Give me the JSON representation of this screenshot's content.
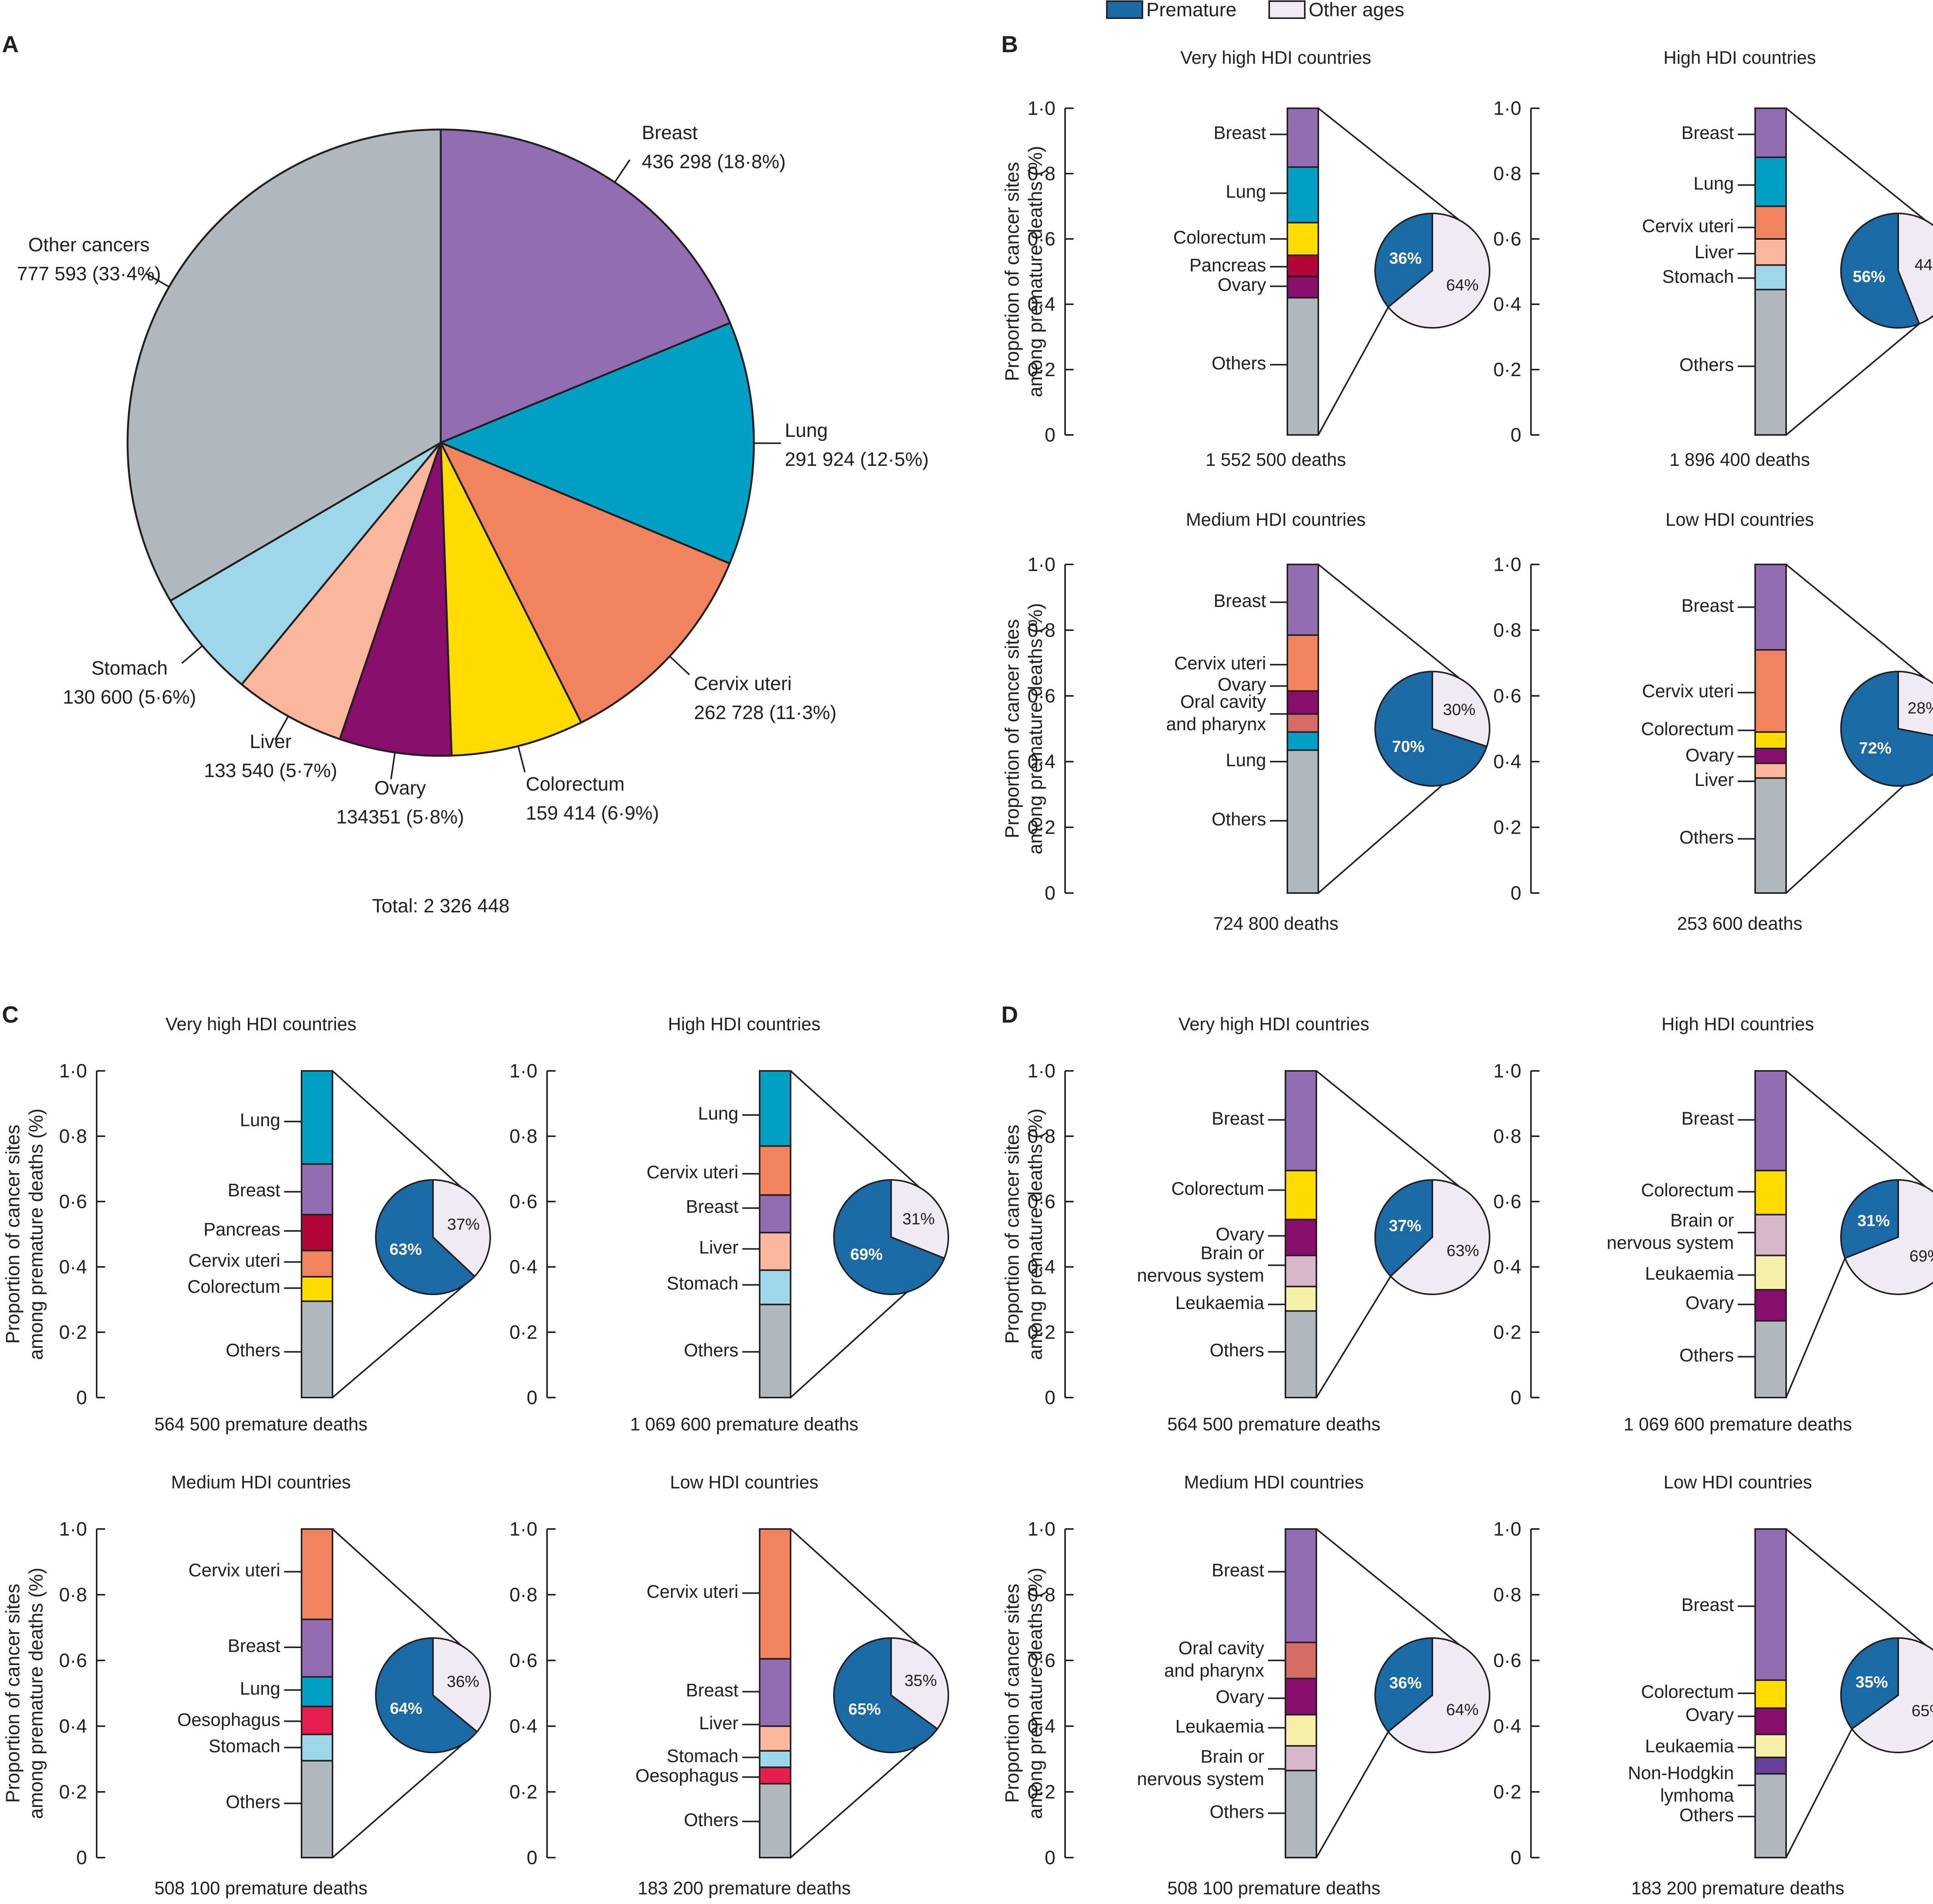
{
  "colors": {
    "Breast": "#936db1",
    "Lung": "#009fc4",
    "Cervix uteri": "#f1845e",
    "Colorectum": "#ffdc00",
    "Ovary": "#870e6d",
    "Liver": "#f9b69c",
    "Stomach": "#9fd7ea",
    "Pancreas": "#b3063b",
    "Oral cavity and pharynx": "#d86a66",
    "Oesophagus": "#e51f4d",
    "Brain or nervous system": "#d8b8c8",
    "Leukaemia": "#f5f0a6",
    "Non-Hodgkin lymhoma": "#6a3f98",
    "Others": "#b1b8be",
    "Other cancers": "#b1b8be",
    "premature": "#1a6aa6",
    "other_ages": "#eeebf3"
  },
  "legend": {
    "premature": "Premature",
    "other_ages": "Other ages"
  },
  "axis": {
    "ylabel_line1": "Proportion of cancer sites",
    "ylabel_line2": "among premature deaths (%)",
    "ticks": [
      "0",
      "0·2",
      "0·4",
      "0·6",
      "0·8",
      "1·0"
    ]
  },
  "chart_data": [
    {
      "panel": "A",
      "type": "pie",
      "total_label": "Total: 2 326 448",
      "slices": [
        {
          "name": "Breast",
          "value": 436298,
          "label": "Breast",
          "sublabel": "436 298 (18·8%)"
        },
        {
          "name": "Lung",
          "value": 291924,
          "label": "Lung",
          "sublabel": "291 924 (12·5%)"
        },
        {
          "name": "Cervix uteri",
          "value": 262728,
          "label": "Cervix uteri",
          "sublabel": "262 728 (11·3%)"
        },
        {
          "name": "Colorectum",
          "value": 159414,
          "label": "Colorectum",
          "sublabel": "159 414 (6·9%)"
        },
        {
          "name": "Ovary",
          "value": 134351,
          "label": "Ovary",
          "sublabel": "134351 (5·8%)"
        },
        {
          "name": "Liver",
          "value": 133540,
          "label": "Liver",
          "sublabel": "133 540 (5·7%)"
        },
        {
          "name": "Stomach",
          "value": 130600,
          "label": "Stomach",
          "sublabel": "130 600 (5·6%)"
        },
        {
          "name": "Other cancers",
          "value": 777593,
          "label": "Other cancers",
          "sublabel": "777 593 (33·4%)"
        }
      ]
    },
    {
      "panel": "B",
      "type": "stacked_bar_with_pie",
      "subplots": [
        {
          "title": "Very high HDI countries",
          "footer": "1 552 500 deaths",
          "premature_pct": 36,
          "other_pct": 64,
          "segments": [
            [
              "Others",
              0.42
            ],
            [
              "Ovary",
              0.065
            ],
            [
              "Pancreas",
              0.065
            ],
            [
              "Colorectum",
              0.1
            ],
            [
              "Lung",
              0.17
            ],
            [
              "Breast",
              0.18
            ]
          ],
          "labels": [
            [
              "Breast",
              0.92
            ],
            [
              "Lung",
              0.74
            ],
            [
              "Colorectum",
              0.6
            ],
            [
              "Pancreas",
              0.515
            ],
            [
              "Ovary",
              0.455
            ],
            [
              "Others",
              0.215
            ]
          ]
        },
        {
          "title": "High HDI countries",
          "footer": "1 896 400 deaths",
          "premature_pct": 56,
          "other_pct": 44,
          "segments": [
            [
              "Others",
              0.445
            ],
            [
              "Stomach",
              0.075
            ],
            [
              "Liver",
              0.08
            ],
            [
              "Cervix uteri",
              0.1
            ],
            [
              "Lung",
              0.15
            ],
            [
              "Breast",
              0.15
            ]
          ],
          "labels": [
            [
              "Breast",
              0.92
            ],
            [
              "Lung",
              0.765
            ],
            [
              "Cervix uteri",
              0.635
            ],
            [
              "Liver",
              0.555
            ],
            [
              "Stomach",
              0.48
            ],
            [
              "Others",
              0.21
            ]
          ]
        },
        {
          "title": "Medium HDI countries",
          "footer": "724 800 deaths",
          "premature_pct": 70,
          "other_pct": 30,
          "segments": [
            [
              "Others",
              0.435
            ],
            [
              "Lung",
              0.055
            ],
            [
              "Oral cavity and pharynx",
              0.055
            ],
            [
              "Ovary",
              0.07
            ],
            [
              "Cervix uteri",
              0.17
            ],
            [
              "Breast",
              0.215
            ]
          ],
          "labels": [
            [
              "Breast",
              0.885
            ],
            [
              "Cervix uteri",
              0.695
            ],
            [
              "Ovary",
              0.63
            ],
            [
              "Oral cavity|and pharynx",
              0.545
            ],
            [
              "Lung",
              0.4
            ],
            [
              "Others",
              0.22
            ]
          ]
        },
        {
          "title": "Low HDI countries",
          "footer": "253 600 deaths",
          "premature_pct": 72,
          "other_pct": 28,
          "segments": [
            [
              "Others",
              0.35
            ],
            [
              "Liver",
              0.045
            ],
            [
              "Ovary",
              0.045
            ],
            [
              "Colorectum",
              0.05
            ],
            [
              "Cervix uteri",
              0.25
            ],
            [
              "Breast",
              0.26
            ]
          ],
          "labels": [
            [
              "Breast",
              0.87
            ],
            [
              "Cervix uteri",
              0.61
            ],
            [
              "Colorectum",
              0.495
            ],
            [
              "Ovary",
              0.415
            ],
            [
              "Liver",
              0.34
            ],
            [
              "Others",
              0.165
            ]
          ]
        }
      ]
    },
    {
      "panel": "C",
      "type": "stacked_bar_with_pie",
      "subplots": [
        {
          "title": "Very high HDI countries",
          "footer": "564 500 premature deaths",
          "premature_pct": 63,
          "other_pct": 37,
          "segments": [
            [
              "Others",
              0.295
            ],
            [
              "Colorectum",
              0.075
            ],
            [
              "Cervix uteri",
              0.08
            ],
            [
              "Pancreas",
              0.11
            ],
            [
              "Breast",
              0.155
            ],
            [
              "Lung",
              0.285
            ]
          ],
          "labels": [
            [
              "Lung",
              0.845
            ],
            [
              "Breast",
              0.63
            ],
            [
              "Pancreas",
              0.51
            ],
            [
              "Cervix uteri",
              0.415
            ],
            [
              "Colorectum",
              0.335
            ],
            [
              "Others",
              0.14
            ]
          ]
        },
        {
          "title": "High HDI countries",
          "footer": "1 069 600 premature deaths",
          "premature_pct": 69,
          "other_pct": 31,
          "segments": [
            [
              "Others",
              0.285
            ],
            [
              "Stomach",
              0.105
            ],
            [
              "Liver",
              0.115
            ],
            [
              "Breast",
              0.115
            ],
            [
              "Cervix uteri",
              0.15
            ],
            [
              "Lung",
              0.23
            ]
          ],
          "labels": [
            [
              "Lung",
              0.865
            ],
            [
              "Cervix uteri",
              0.685
            ],
            [
              "Breast",
              0.58
            ],
            [
              "Liver",
              0.455
            ],
            [
              "Stomach",
              0.345
            ],
            [
              "Others",
              0.14
            ]
          ]
        },
        {
          "title": "Medium HDI countries",
          "footer": "508 100 premature deaths",
          "premature_pct": 64,
          "other_pct": 36,
          "segments": [
            [
              "Others",
              0.295
            ],
            [
              "Stomach",
              0.08
            ],
            [
              "Oesophagus",
              0.085
            ],
            [
              "Lung",
              0.09
            ],
            [
              "Breast",
              0.175
            ],
            [
              "Cervix uteri",
              0.275
            ]
          ],
          "labels": [
            [
              "Cervix uteri",
              0.87
            ],
            [
              "Breast",
              0.64
            ],
            [
              "Lung",
              0.51
            ],
            [
              "Oesophagus",
              0.415
            ],
            [
              "Stomach",
              0.335
            ],
            [
              "Others",
              0.165
            ]
          ]
        },
        {
          "title": "Low HDI countries",
          "footer": "183 200 premature deaths",
          "premature_pct": 65,
          "other_pct": 35,
          "segments": [
            [
              "Others",
              0.225
            ],
            [
              "Oesophagus",
              0.05
            ],
            [
              "Stomach",
              0.05
            ],
            [
              "Liver",
              0.075
            ],
            [
              "Breast",
              0.205
            ],
            [
              "Cervix uteri",
              0.395
            ]
          ],
          "labels": [
            [
              "Cervix uteri",
              0.805
            ],
            [
              "Breast",
              0.505
            ],
            [
              "Liver",
              0.405
            ],
            [
              "Stomach",
              0.305
            ],
            [
              "Oesophagus",
              0.245
            ],
            [
              "Others",
              0.11
            ]
          ]
        }
      ]
    },
    {
      "panel": "D",
      "type": "stacked_bar_with_pie",
      "subplots": [
        {
          "title": "Very high HDI countries",
          "footer": "564 500 premature deaths",
          "premature_pct": 37,
          "other_pct": 63,
          "segments": [
            [
              "Others",
              0.265
            ],
            [
              "Leukaemia",
              0.075
            ],
            [
              "Brain or nervous system",
              0.095
            ],
            [
              "Ovary",
              0.11
            ],
            [
              "Colorectum",
              0.15
            ],
            [
              "Breast",
              0.305
            ]
          ],
          "labels": [
            [
              "Breast",
              0.85
            ],
            [
              "Colorectum",
              0.635
            ],
            [
              "Ovary",
              0.495
            ],
            [
              "Brain or|nervous system",
              0.405
            ],
            [
              "Leukaemia",
              0.285
            ],
            [
              "Others",
              0.14
            ]
          ]
        },
        {
          "title": "High HDI countries",
          "footer": "1 069 600 premature deaths",
          "premature_pct": 31,
          "other_pct": 69,
          "segments": [
            [
              "Others",
              0.235
            ],
            [
              "Ovary",
              0.095
            ],
            [
              "Leukaemia",
              0.105
            ],
            [
              "Brain or nervous system",
              0.125
            ],
            [
              "Colorectum",
              0.135
            ],
            [
              "Breast",
              0.305
            ]
          ],
          "labels": [
            [
              "Breast",
              0.85
            ],
            [
              "Colorectum",
              0.63
            ],
            [
              "Brain or|nervous system",
              0.505
            ],
            [
              "Leukaemia",
              0.375
            ],
            [
              "Ovary",
              0.285
            ],
            [
              "Others",
              0.125
            ]
          ]
        },
        {
          "title": "Medium HDI countries",
          "footer": "508 100 premature deaths",
          "premature_pct": 36,
          "other_pct": 64,
          "segments": [
            [
              "Others",
              0.265
            ],
            [
              "Brain or nervous system",
              0.075
            ],
            [
              "Leukaemia",
              0.095
            ],
            [
              "Ovary",
              0.11
            ],
            [
              "Oral cavity and pharynx",
              0.11
            ],
            [
              "Breast",
              0.345
            ]
          ],
          "labels": [
            [
              "Breast",
              0.87
            ],
            [
              "Oral cavity|and pharynx",
              0.6
            ],
            [
              "Ovary",
              0.485
            ],
            [
              "Leukaemia",
              0.395
            ],
            [
              "Brain or|nervous system",
              0.27
            ],
            [
              "Others",
              0.135
            ]
          ]
        },
        {
          "title": "Low HDI countries",
          "footer": "183 200 premature deaths",
          "premature_pct": 35,
          "other_pct": 65,
          "segments": [
            [
              "Others",
              0.255
            ],
            [
              "Non-Hodgkin lymhoma",
              0.05
            ],
            [
              "Leukaemia",
              0.07
            ],
            [
              "Ovary",
              0.08
            ],
            [
              "Colorectum",
              0.085
            ],
            [
              "Breast",
              0.46
            ]
          ],
          "labels": [
            [
              "Breast",
              0.765
            ],
            [
              "Colorectum",
              0.5
            ],
            [
              "Ovary",
              0.43
            ],
            [
              "Leukaemia",
              0.335
            ],
            [
              "Non-Hodgkin|lymhoma",
              0.22
            ],
            [
              "Others",
              0.125
            ]
          ]
        }
      ]
    }
  ]
}
